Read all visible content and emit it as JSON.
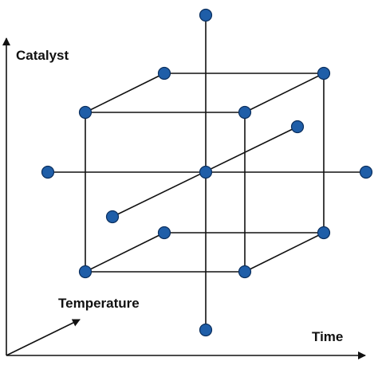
{
  "diagram": {
    "axes": {
      "vertical_label": "Catalyst",
      "horizontal_label": "Time",
      "depth_label": "Temperature"
    },
    "structure": "central composite design: cube with 8 corner points, 6 axial star points and 1 center point",
    "colors": {
      "point_fill": "#1f5ea8",
      "point_outline": "#0b2f5e",
      "line": "#111111"
    }
  }
}
